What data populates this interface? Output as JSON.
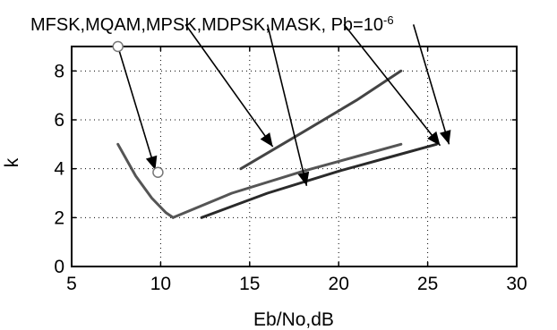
{
  "chart_data": {
    "type": "line",
    "title": "MFSK,MQAM,MPSK,MDPSK,MASK, Pb=10",
    "title_superscript": "-6",
    "xlabel": "Eb/No,dB",
    "ylabel": "k",
    "xlim": [
      5,
      30
    ],
    "ylim": [
      0,
      9
    ],
    "xticks": [
      5,
      10,
      15,
      20,
      25,
      30
    ],
    "yticks": [
      0,
      2,
      4,
      6,
      8
    ],
    "grid": true,
    "series": [
      {
        "color": "#555555",
        "x": [
          7.6,
          8.6,
          9.5,
          10.3,
          10.7
        ],
        "y": [
          5.0,
          3.7,
          2.8,
          2.2,
          2.0
        ]
      },
      {
        "color": "#555555",
        "x": [
          10.7,
          14.0,
          18.0,
          21.0,
          23.5
        ],
        "y": [
          2.0,
          3.0,
          3.9,
          4.5,
          5.0
        ]
      },
      {
        "color": "#2a2a2a",
        "x": [
          12.3,
          16.0,
          20.0,
          23.0,
          25.5
        ],
        "y": [
          2.0,
          3.0,
          3.9,
          4.5,
          5.0
        ]
      },
      {
        "color": "#444444",
        "x": [
          14.5,
          18.0,
          21.0,
          23.5
        ],
        "y": [
          4.0,
          5.5,
          6.8,
          8.0
        ]
      }
    ],
    "markers": [
      {
        "x": 7.6,
        "y": 9.0
      },
      {
        "x": 9.85,
        "y": 3.85
      }
    ],
    "annotations": [
      {
        "from": [
          7.6,
          9.0
        ],
        "to": [
          9.7,
          3.95
        ]
      },
      {
        "from": [
          11.4,
          9.9
        ],
        "to": [
          16.3,
          4.9
        ]
      },
      {
        "from": [
          16.0,
          9.9
        ],
        "to": [
          18.2,
          3.3
        ]
      },
      {
        "from": [
          20.3,
          9.9
        ],
        "to": [
          25.7,
          4.95
        ]
      },
      {
        "from": [
          24.2,
          9.9
        ],
        "to": [
          26.2,
          5.0
        ]
      }
    ]
  }
}
